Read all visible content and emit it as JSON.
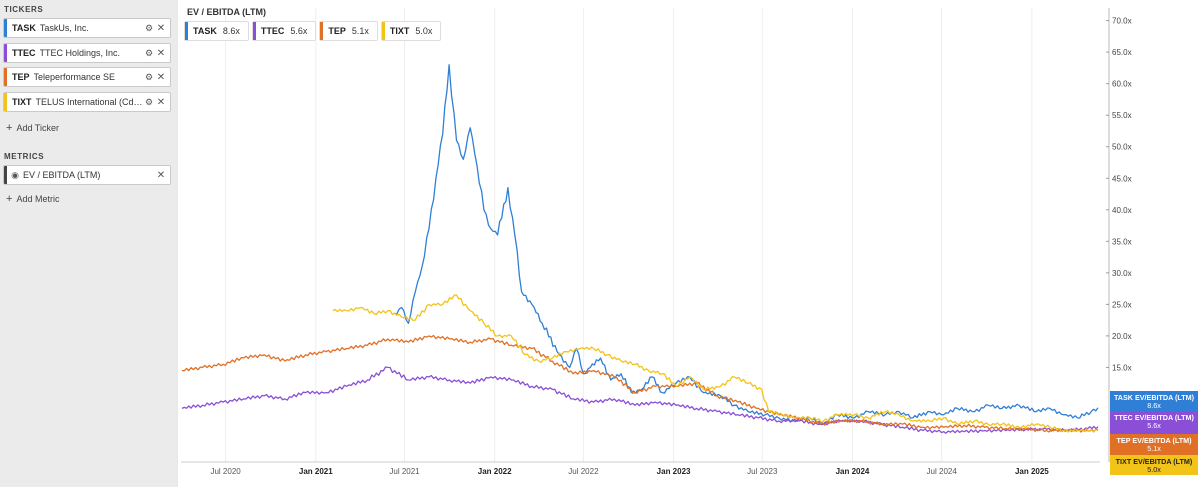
{
  "sidebar": {
    "tickers_title": "TICKERS",
    "tickers": [
      {
        "symbol": "TASK",
        "name": "TaskUs, Inc.",
        "color": "#2f7fd6",
        "settings_icon": "gear-icon",
        "remove_icon": "close-icon"
      },
      {
        "symbol": "TTEC",
        "name": "TTEC Holdings, Inc.",
        "color": "#8a4fd6",
        "settings_icon": "gear-icon",
        "remove_icon": "close-icon"
      },
      {
        "symbol": "TEP",
        "name": "Teleperformance SE",
        "color": "#e07026",
        "settings_icon": "gear-icon",
        "remove_icon": "close-icon"
      },
      {
        "symbol": "TIXT",
        "name": "TELUS International (Cda...",
        "color": "#f2c318",
        "settings_icon": "gear-icon",
        "remove_icon": "close-icon"
      }
    ],
    "add_ticker_label": "Add Ticker",
    "metrics_title": "METRICS",
    "metrics": [
      {
        "name": "EV / EBITDA (LTM)",
        "visibility_icon": "eye-icon",
        "remove_icon": "close-icon"
      }
    ],
    "add_metric_label": "Add Metric"
  },
  "chart_data": {
    "type": "line",
    "title": "EV / EBITDA (LTM)",
    "xlabel": "",
    "ylabel": "",
    "y_unit": "x",
    "ylim": [
      0,
      72
    ],
    "y_ticks": [
      "15.0x",
      "20.0x",
      "25.0x",
      "30.0x",
      "35.0x",
      "40.0x",
      "45.0x",
      "50.0x",
      "55.0x",
      "60.0x",
      "65.0x",
      "70.0x"
    ],
    "x_ticks": [
      "Jul 2020",
      "Jan 2021",
      "Jul 2021",
      "Jan 2022",
      "Jul 2022",
      "Jan 2023",
      "Jul 2023",
      "Jan 2024",
      "Jul 2024",
      "Jan 2025"
    ],
    "x_range": [
      "2020-04-01",
      "2025-05-20"
    ],
    "grid": "vertical",
    "legend_position": "top-left",
    "series": [
      {
        "name": "TASK",
        "last_label": "8.6x",
        "tag": "TASK EV/EBITDA (LTM)",
        "color": "#2f7fd6",
        "points": [
          [
            "2021-06-11",
            23.5
          ],
          [
            "2021-06-25",
            24.5
          ],
          [
            "2021-07-09",
            22.0
          ],
          [
            "2021-07-23",
            27.0
          ],
          [
            "2021-08-06",
            31.0
          ],
          [
            "2021-08-20",
            37.0
          ],
          [
            "2021-09-03",
            45.0
          ],
          [
            "2021-09-17",
            52.0
          ],
          [
            "2021-09-30",
            63.0
          ],
          [
            "2021-10-15",
            51.0
          ],
          [
            "2021-10-29",
            48.0
          ],
          [
            "2021-11-12",
            53.0
          ],
          [
            "2021-11-26",
            47.0
          ],
          [
            "2021-12-10",
            40.0
          ],
          [
            "2021-12-24",
            37.0
          ],
          [
            "2022-01-07",
            36.0
          ],
          [
            "2022-01-28",
            43.5
          ],
          [
            "2022-02-11",
            36.0
          ],
          [
            "2022-02-25",
            27.0
          ],
          [
            "2022-03-18",
            25.0
          ],
          [
            "2022-04-08",
            22.0
          ],
          [
            "2022-05-13",
            17.0
          ],
          [
            "2022-06-03",
            15.0
          ],
          [
            "2022-06-17",
            18.0
          ],
          [
            "2022-07-01",
            14.0
          ],
          [
            "2022-07-15",
            15.0
          ],
          [
            "2022-08-05",
            16.5
          ],
          [
            "2022-08-26",
            13.0
          ],
          [
            "2022-09-16",
            14.0
          ],
          [
            "2022-10-07",
            11.0
          ],
          [
            "2022-10-28",
            11.5
          ],
          [
            "2022-11-18",
            13.5
          ],
          [
            "2022-12-09",
            11.0
          ],
          [
            "2023-01-06",
            12.5
          ],
          [
            "2023-02-03",
            13.5
          ],
          [
            "2023-03-03",
            11.0
          ],
          [
            "2023-04-07",
            10.5
          ],
          [
            "2023-05-05",
            9.0
          ],
          [
            "2023-06-02",
            8.0
          ],
          [
            "2023-07-07",
            7.5
          ],
          [
            "2023-08-04",
            7.0
          ],
          [
            "2023-09-01",
            6.5
          ],
          [
            "2023-10-06",
            7.0
          ],
          [
            "2023-11-03",
            6.0
          ],
          [
            "2023-12-01",
            7.5
          ],
          [
            "2024-01-05",
            7.0
          ],
          [
            "2024-02-02",
            8.0
          ],
          [
            "2024-03-08",
            7.5
          ],
          [
            "2024-04-05",
            8.0
          ],
          [
            "2024-05-03",
            7.0
          ],
          [
            "2024-06-07",
            8.0
          ],
          [
            "2024-07-05",
            7.5
          ],
          [
            "2024-08-02",
            8.5
          ],
          [
            "2024-09-06",
            8.0
          ],
          [
            "2024-10-04",
            9.0
          ],
          [
            "2024-11-01",
            8.5
          ],
          [
            "2024-12-06",
            9.0
          ],
          [
            "2025-01-10",
            8.0
          ],
          [
            "2025-02-07",
            8.5
          ],
          [
            "2025-03-07",
            7.5
          ],
          [
            "2025-04-04",
            7.0
          ],
          [
            "2025-05-02",
            8.0
          ],
          [
            "2025-05-16",
            8.6
          ]
        ]
      },
      {
        "name": "TTEC",
        "last_label": "5.6x",
        "tag": "TTEC EV/EBITDA (LTM)",
        "color": "#8a4fd6",
        "points": [
          [
            "2020-04-03",
            8.5
          ],
          [
            "2020-05-15",
            9.0
          ],
          [
            "2020-06-26",
            9.5
          ],
          [
            "2020-08-07",
            10.0
          ],
          [
            "2020-09-18",
            10.5
          ],
          [
            "2020-10-30",
            10.0
          ],
          [
            "2020-12-11",
            11.0
          ],
          [
            "2021-01-22",
            11.0
          ],
          [
            "2021-03-05",
            12.0
          ],
          [
            "2021-04-16",
            13.0
          ],
          [
            "2021-05-28",
            15.0
          ],
          [
            "2021-07-09",
            13.0
          ],
          [
            "2021-08-20",
            13.5
          ],
          [
            "2021-10-01",
            13.0
          ],
          [
            "2021-11-12",
            12.5
          ],
          [
            "2021-12-24",
            13.5
          ],
          [
            "2022-02-04",
            13.0
          ],
          [
            "2022-03-18",
            12.0
          ],
          [
            "2022-04-29",
            11.5
          ],
          [
            "2022-06-10",
            10.0
          ],
          [
            "2022-07-22",
            9.5
          ],
          [
            "2022-09-02",
            10.0
          ],
          [
            "2022-10-14",
            9.0
          ],
          [
            "2022-11-25",
            9.5
          ],
          [
            "2023-01-06",
            9.0
          ],
          [
            "2023-02-17",
            8.5
          ],
          [
            "2023-03-31",
            8.0
          ],
          [
            "2023-05-12",
            7.5
          ],
          [
            "2023-06-23",
            7.0
          ],
          [
            "2023-08-04",
            6.5
          ],
          [
            "2023-09-15",
            6.5
          ],
          [
            "2023-10-27",
            6.0
          ],
          [
            "2023-12-08",
            6.5
          ],
          [
            "2024-01-19",
            6.5
          ],
          [
            "2024-03-01",
            6.0
          ],
          [
            "2024-04-12",
            5.5
          ],
          [
            "2024-05-24",
            5.0
          ],
          [
            "2024-07-05",
            4.8
          ],
          [
            "2024-08-16",
            4.8
          ],
          [
            "2024-09-27",
            5.0
          ],
          [
            "2024-11-08",
            5.0
          ],
          [
            "2024-12-20",
            5.2
          ],
          [
            "2025-01-31",
            5.2
          ],
          [
            "2025-03-14",
            5.0
          ],
          [
            "2025-04-25",
            5.3
          ],
          [
            "2025-05-16",
            5.6
          ]
        ]
      },
      {
        "name": "TEP",
        "last_label": "5.1x",
        "tag": "TEP EV/EBITDA (LTM)",
        "color": "#e07026",
        "points": [
          [
            "2020-04-03",
            14.5
          ],
          [
            "2020-05-15",
            15.0
          ],
          [
            "2020-06-26",
            15.5
          ],
          [
            "2020-08-07",
            16.5
          ],
          [
            "2020-09-18",
            17.0
          ],
          [
            "2020-10-30",
            16.0
          ],
          [
            "2020-12-11",
            17.0
          ],
          [
            "2021-01-22",
            17.5
          ],
          [
            "2021-03-05",
            18.0
          ],
          [
            "2021-04-16",
            18.5
          ],
          [
            "2021-05-28",
            19.5
          ],
          [
            "2021-07-09",
            19.0
          ],
          [
            "2021-08-20",
            20.0
          ],
          [
            "2021-10-01",
            19.5
          ],
          [
            "2021-11-12",
            19.0
          ],
          [
            "2021-12-24",
            19.5
          ],
          [
            "2022-02-04",
            18.5
          ],
          [
            "2022-03-18",
            18.0
          ],
          [
            "2022-04-29",
            16.0
          ],
          [
            "2022-06-10",
            14.0
          ],
          [
            "2022-07-22",
            14.5
          ],
          [
            "2022-09-02",
            13.5
          ],
          [
            "2022-10-14",
            11.0
          ],
          [
            "2022-11-25",
            12.0
          ],
          [
            "2023-01-06",
            12.0
          ],
          [
            "2023-02-17",
            12.5
          ],
          [
            "2023-03-31",
            10.5
          ],
          [
            "2023-05-12",
            9.5
          ],
          [
            "2023-06-23",
            8.5
          ],
          [
            "2023-08-04",
            7.5
          ],
          [
            "2023-09-15",
            7.0
          ],
          [
            "2023-10-27",
            6.0
          ],
          [
            "2023-12-08",
            6.5
          ],
          [
            "2024-01-19",
            6.5
          ],
          [
            "2024-03-01",
            6.0
          ],
          [
            "2024-04-12",
            6.0
          ],
          [
            "2024-05-24",
            5.5
          ],
          [
            "2024-07-05",
            5.5
          ],
          [
            "2024-08-16",
            5.8
          ],
          [
            "2024-09-27",
            5.5
          ],
          [
            "2024-11-08",
            5.3
          ],
          [
            "2024-12-20",
            5.2
          ],
          [
            "2025-01-31",
            5.0
          ],
          [
            "2025-03-14",
            5.0
          ],
          [
            "2025-04-25",
            5.0
          ],
          [
            "2025-05-16",
            5.1
          ]
        ]
      },
      {
        "name": "TIXT",
        "last_label": "5.0x",
        "tag": "TIXT EV/EBITDA (LTM)",
        "color": "#f2c318",
        "points": [
          [
            "2021-02-05",
            24.0
          ],
          [
            "2021-03-05",
            24.0
          ],
          [
            "2021-04-02",
            24.5
          ],
          [
            "2021-04-30",
            23.5
          ],
          [
            "2021-05-28",
            24.0
          ],
          [
            "2021-06-25",
            23.0
          ],
          [
            "2021-07-23",
            22.5
          ],
          [
            "2021-08-20",
            25.0
          ],
          [
            "2021-09-17",
            25.0
          ],
          [
            "2021-10-15",
            26.5
          ],
          [
            "2021-11-12",
            24.0
          ],
          [
            "2021-12-10",
            22.0
          ],
          [
            "2022-01-07",
            20.0
          ],
          [
            "2022-02-04",
            20.0
          ],
          [
            "2022-03-04",
            17.0
          ],
          [
            "2022-04-01",
            16.0
          ],
          [
            "2022-04-29",
            16.5
          ],
          [
            "2022-05-27",
            17.5
          ],
          [
            "2022-06-24",
            18.0
          ],
          [
            "2022-07-22",
            18.0
          ],
          [
            "2022-08-19",
            17.0
          ],
          [
            "2022-09-16",
            16.0
          ],
          [
            "2022-10-14",
            15.5
          ],
          [
            "2022-11-11",
            14.5
          ],
          [
            "2022-12-09",
            14.0
          ],
          [
            "2023-01-06",
            12.0
          ],
          [
            "2023-02-03",
            13.5
          ],
          [
            "2023-03-03",
            11.5
          ],
          [
            "2023-04-07",
            12.0
          ],
          [
            "2023-05-05",
            13.5
          ],
          [
            "2023-06-02",
            12.5
          ],
          [
            "2023-06-30",
            11.5
          ],
          [
            "2023-07-14",
            8.0
          ],
          [
            "2023-08-11",
            7.5
          ],
          [
            "2023-09-08",
            7.0
          ],
          [
            "2023-10-06",
            7.0
          ],
          [
            "2023-11-03",
            6.5
          ],
          [
            "2023-12-01",
            7.5
          ],
          [
            "2024-01-05",
            7.5
          ],
          [
            "2024-02-02",
            7.0
          ],
          [
            "2024-03-08",
            8.0
          ],
          [
            "2024-04-05",
            7.5
          ],
          [
            "2024-05-03",
            6.5
          ],
          [
            "2024-06-07",
            6.5
          ],
          [
            "2024-07-05",
            7.0
          ],
          [
            "2024-08-02",
            6.0
          ],
          [
            "2024-09-06",
            6.5
          ],
          [
            "2024-10-04",
            6.0
          ],
          [
            "2024-11-01",
            6.0
          ],
          [
            "2024-12-06",
            5.5
          ],
          [
            "2025-01-10",
            6.0
          ],
          [
            "2025-02-07",
            5.5
          ],
          [
            "2025-03-07",
            5.0
          ],
          [
            "2025-04-04",
            5.0
          ],
          [
            "2025-05-16",
            5.0
          ]
        ]
      }
    ]
  }
}
